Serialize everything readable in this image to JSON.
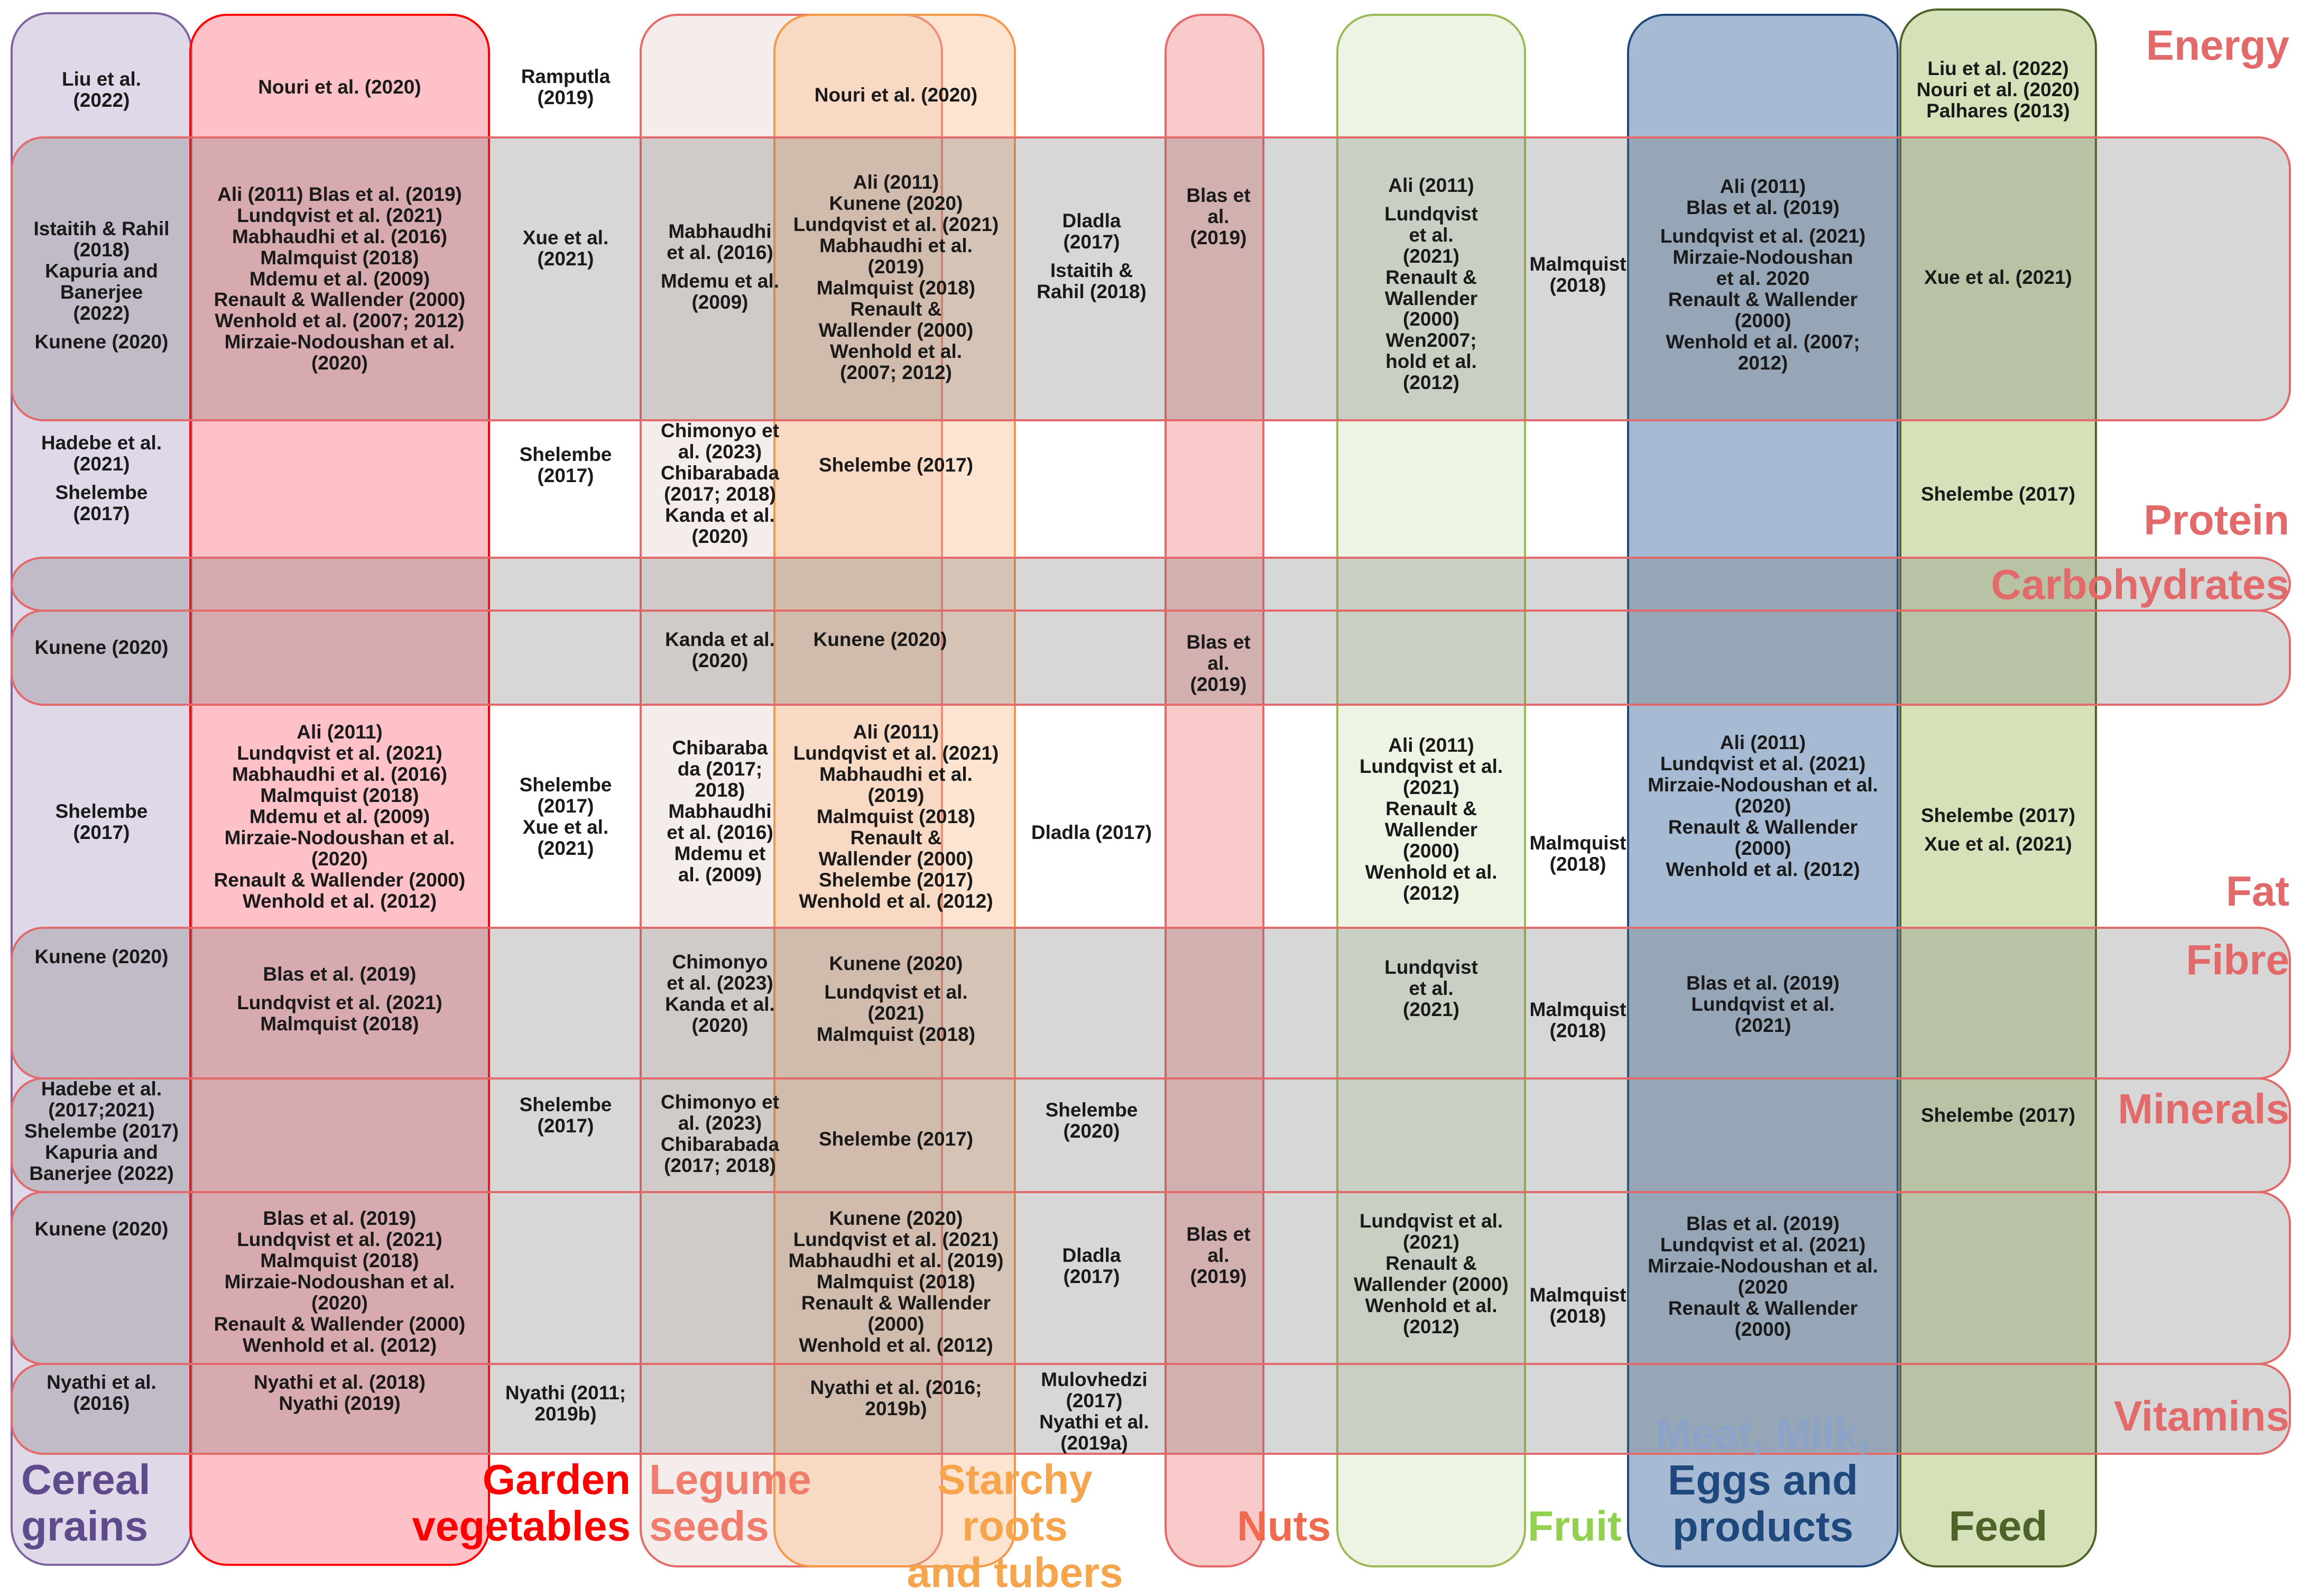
{
  "colors": {
    "background": "#ffffff",
    "row_band_fill": "#707070",
    "row_band_stroke": "#e26a6a",
    "row_label": "#e26a6a"
  },
  "columns": [
    {
      "id": "cereal",
      "label_lines": [
        "Cereal",
        "grains"
      ],
      "fill": "#b3a2c7",
      "stroke": "#8064a2",
      "label_color": "#5f4b8b"
    },
    {
      "id": "garden",
      "label_lines": [
        "Garden",
        "vegetables"
      ],
      "fill": "#ff6b7d",
      "stroke": "#ff0000",
      "label_color": "#ff0000"
    },
    {
      "id": "legume",
      "label_lines": [
        "Legume",
        "seeds"
      ],
      "fill": "#e8d5d0",
      "stroke": "#e26a6a",
      "label_color": "#f07c6c"
    },
    {
      "id": "starchy",
      "label_lines": [
        "Starchy roots",
        "and tubers"
      ],
      "fill": "#fabf8f",
      "stroke": "#f79646",
      "label_color": "#f7a54c"
    },
    {
      "id": "nuts",
      "label_lines": [
        "Nuts"
      ],
      "fill": "#f08080",
      "stroke": "#e26a6a",
      "label_color": "#f06a50"
    },
    {
      "id": "fruit",
      "label_lines": [
        "Fruit"
      ],
      "fill": "#d7e4bd",
      "stroke": "#9bbb59",
      "label_color": "#92d050"
    },
    {
      "id": "meat",
      "label_lines": [
        "Meat, Milk,",
        "Eggs and",
        "products"
      ],
      "fill": "#2a5d96",
      "stroke": "#1f497d",
      "label_color": "#1f497d"
    },
    {
      "id": "feed",
      "label_lines": [
        "Feed"
      ],
      "fill": "#9bbb59",
      "stroke": "#4f6228",
      "label_color": "#4f6228"
    }
  ],
  "rows": [
    {
      "id": "energy",
      "label": "Energy"
    },
    {
      "id": "protein",
      "label": "Protein"
    },
    {
      "id": "carbohydrates",
      "label": "Carbohydrates"
    },
    {
      "id": "fat",
      "label": "Fat"
    },
    {
      "id": "fibre",
      "label": "Fibre"
    },
    {
      "id": "minerals",
      "label": "Minerals"
    },
    {
      "id": "vitamins",
      "label": "Vitamins"
    }
  ],
  "cells": [
    {
      "id": "c01",
      "lines": [
        "Liu et al.",
        "(2022)"
      ]
    },
    {
      "id": "c02",
      "lines": [
        "Nouri et al. (2020)"
      ]
    },
    {
      "id": "c03",
      "lines": [
        "Ramputla",
        "(2019)"
      ]
    },
    {
      "id": "c04",
      "lines": [
        "Nouri et al. (2020)"
      ]
    },
    {
      "id": "c05",
      "lines": [
        "Liu et al. (2022)",
        "Nouri et al. (2020)",
        "Palhares (2013)"
      ]
    },
    {
      "id": "c06",
      "lines": [
        "Istaitih & Rahil",
        "(2018)",
        "Kapuria and",
        "Banerjee",
        "(2022)",
        "",
        "Kunene (2020)"
      ]
    },
    {
      "id": "c07",
      "lines": [
        "Ali (2011)   Blas et al. (2019)",
        "Lundqvist et al. (2021)",
        "Mabhaudhi et al. (2016)",
        "Malmquist (2018)",
        "Mdemu et al. (2009)",
        "Renault & Wallender (2000)",
        "Wenhold et al. (2007; 2012)",
        "Mirzaie-Nodoushan et al.",
        "(2020)"
      ]
    },
    {
      "id": "c08",
      "lines": [
        "Xue et al.",
        "(2021)"
      ]
    },
    {
      "id": "c09",
      "lines": [
        "Mabhaudhi",
        "et al. (2016)",
        "",
        "Mdemu et al.",
        "(2009)"
      ]
    },
    {
      "id": "c10",
      "lines": [
        "Ali (2011)",
        "Kunene (2020)",
        "Lundqvist et al. (2021)",
        "Mabhaudhi et al.",
        "(2019)",
        "Malmquist (2018)",
        "Renault &",
        "Wallender (2000)",
        "Wenhold et al.",
        "(2007; 2012)"
      ]
    },
    {
      "id": "c11",
      "lines": [
        "Dladla",
        "(2017)",
        "",
        "Istaitih &",
        "Rahil (2018)"
      ]
    },
    {
      "id": "c12",
      "lines": [
        "Blas et",
        "al.",
        "(2019)"
      ]
    },
    {
      "id": "c13",
      "lines": [
        "Ali (2011)",
        "",
        "Lundqvist",
        "et al.",
        "(2021)",
        "Renault &",
        "Wallender",
        "(2000)",
        "Wen2007;",
        "hold et al.",
        "(2012)"
      ]
    },
    {
      "id": "c14",
      "lines": [
        "Malmquist",
        "(2018)"
      ]
    },
    {
      "id": "c15",
      "lines": [
        "Ali (2011)",
        "Blas et al. (2019)",
        "",
        "Lundqvist et al. (2021)",
        "Mirzaie-Nodoushan",
        "et al. 2020",
        "Renault & Wallender",
        "(2000)",
        "Wenhold et al. (2007;",
        "2012)"
      ]
    },
    {
      "id": "c16",
      "lines": [
        "Xue et al. (2021)"
      ]
    },
    {
      "id": "c17",
      "lines": [
        "Hadebe et al.",
        "(2021)",
        "",
        "Shelembe",
        "(2017)"
      ]
    },
    {
      "id": "c18",
      "lines": [
        "Shelembe",
        "(2017)"
      ]
    },
    {
      "id": "c19",
      "lines": [
        "Chimonyo et",
        "al. (2023)",
        "Chibarabada",
        "(2017; 2018)",
        "Kanda et al.",
        "(2020)"
      ]
    },
    {
      "id": "c20",
      "lines": [
        "Shelembe (2017)"
      ]
    },
    {
      "id": "c21",
      "lines": [
        "Shelembe (2017)"
      ]
    },
    {
      "id": "c22",
      "lines": [
        "Kunene (2020)"
      ]
    },
    {
      "id": "c23",
      "lines": [
        "Kanda et al.",
        "(2020)"
      ]
    },
    {
      "id": "c24",
      "lines": [
        "Kunene (2020)"
      ]
    },
    {
      "id": "c25",
      "lines": [
        "Blas et",
        "al.",
        "(2019)"
      ]
    },
    {
      "id": "c26",
      "lines": [
        "Shelembe",
        "(2017)"
      ]
    },
    {
      "id": "c27",
      "lines": [
        "Ali (2011)",
        "Lundqvist et al. (2021)",
        "Mabhaudhi et al. (2016)",
        "Malmquist (2018)",
        "Mdemu et al. (2009)",
        "Mirzaie-Nodoushan et al.",
        "(2020)",
        "Renault & Wallender (2000)",
        "Wenhold et al. (2012)"
      ]
    },
    {
      "id": "c28",
      "lines": [
        "Shelembe",
        "(2017)",
        "Xue et al.",
        "(2021)"
      ]
    },
    {
      "id": "c29",
      "lines": [
        "Chibaraba",
        "da (2017;",
        "2018)",
        "Mabhaudhi",
        "et al. (2016)",
        "Mdemu et",
        "al. (2009)"
      ]
    },
    {
      "id": "c30",
      "lines": [
        "Ali (2011)",
        "Lundqvist et al. (2021)",
        "Mabhaudhi et al.",
        "(2019)",
        "Malmquist (2018)",
        "Renault &",
        "Wallender (2000)",
        "Shelembe (2017)",
        "Wenhold et al. (2012)"
      ]
    },
    {
      "id": "c31",
      "lines": [
        "Dladla (2017)"
      ]
    },
    {
      "id": "c32",
      "lines": [
        "Ali (2011)",
        "Lundqvist et al.",
        "(2021)",
        "Renault &",
        "Wallender",
        "(2000)",
        "Wenhold et al.",
        "(2012)"
      ]
    },
    {
      "id": "c33",
      "lines": [
        "Malmquist",
        "(2018)"
      ]
    },
    {
      "id": "c34",
      "lines": [
        "Ali (2011)",
        "Lundqvist et al. (2021)",
        "Mirzaie-Nodoushan et al.",
        "(2020)",
        "Renault & Wallender",
        "(2000)",
        "Wenhold et al. (2012)"
      ]
    },
    {
      "id": "c35",
      "lines": [
        "Shelembe (2017)",
        "",
        "Xue et al. (2021)"
      ]
    },
    {
      "id": "c36",
      "lines": [
        "Kunene (2020)"
      ]
    },
    {
      "id": "c37",
      "lines": [
        "Blas et al. (2019)",
        "",
        "Lundqvist et al. (2021)",
        "Malmquist (2018)"
      ]
    },
    {
      "id": "c38",
      "lines": [
        "Chimonyo",
        "et al. (2023)",
        "Kanda et al.",
        "(2020)"
      ]
    },
    {
      "id": "c39",
      "lines": [
        "Kunene (2020)",
        "",
        "Lundqvist et al.",
        "(2021)",
        "Malmquist (2018)"
      ]
    },
    {
      "id": "c40",
      "lines": [
        "Lundqvist",
        "et al.",
        "(2021)"
      ]
    },
    {
      "id": "c41",
      "lines": [
        "Malmquist",
        "(2018)"
      ]
    },
    {
      "id": "c42",
      "lines": [
        "Blas et al. (2019)",
        "Lundqvist et al.",
        "(2021)"
      ]
    },
    {
      "id": "c43",
      "lines": [
        "Hadebe et al.",
        "(2017;2021)",
        "Shelembe (2017)",
        "Kapuria and",
        "Banerjee (2022)"
      ]
    },
    {
      "id": "c44",
      "lines": [
        "Shelembe",
        "(2017)"
      ]
    },
    {
      "id": "c45",
      "lines": [
        "Chimonyo et",
        "al. (2023)",
        "Chibarabada",
        "(2017; 2018)"
      ]
    },
    {
      "id": "c46",
      "lines": [
        "Shelembe (2017)"
      ]
    },
    {
      "id": "c47",
      "lines": [
        "Shelembe",
        "(2020)"
      ]
    },
    {
      "id": "c48",
      "lines": [
        "Shelembe (2017)"
      ]
    },
    {
      "id": "c49",
      "lines": [
        "Kunene (2020)"
      ]
    },
    {
      "id": "c50",
      "lines": [
        "Blas et al. (2019)",
        "Lundqvist et al. (2021)",
        "Malmquist (2018)",
        "Mirzaie-Nodoushan et al.",
        "(2020)",
        "Renault & Wallender (2000)",
        "Wenhold et al. (2012)"
      ]
    },
    {
      "id": "c51",
      "lines": [
        "Kunene (2020)",
        "Lundqvist et al. (2021)",
        "Mabhaudhi et al. (2019)",
        "Malmquist (2018)",
        "Renault & Wallender",
        "(2000)",
        "Wenhold et al. (2012)"
      ]
    },
    {
      "id": "c52",
      "lines": [
        "Dladla",
        "(2017)"
      ]
    },
    {
      "id": "c53",
      "lines": [
        "Blas et",
        "al.",
        "(2019)"
      ]
    },
    {
      "id": "c54",
      "lines": [
        "Lundqvist et al.",
        "(2021)",
        "Renault &",
        "Wallender (2000)",
        "Wenhold et al.",
        "(2012)"
      ]
    },
    {
      "id": "c55",
      "lines": [
        "Malmquist",
        "(2018)"
      ]
    },
    {
      "id": "c56",
      "lines": [
        "Blas et al. (2019)",
        "Lundqvist et al. (2021)",
        "Mirzaie-Nodoushan et al.",
        "(2020",
        "Renault & Wallender",
        "(2000)"
      ]
    },
    {
      "id": "c57",
      "lines": [
        "Nyathi et al.",
        "(2016)"
      ]
    },
    {
      "id": "c58",
      "lines": [
        "Nyathi et al. (2018)",
        "Nyathi (2019)"
      ]
    },
    {
      "id": "c59",
      "lines": [
        "Nyathi (2011;",
        "2019b)"
      ]
    },
    {
      "id": "c60",
      "lines": [
        "Nyathi et al. (2016;",
        "2019b)"
      ]
    },
    {
      "id": "c61",
      "lines": [
        "Mulovhedzi",
        "(2017)",
        "Nyathi et al.",
        "(2019a)"
      ]
    }
  ]
}
